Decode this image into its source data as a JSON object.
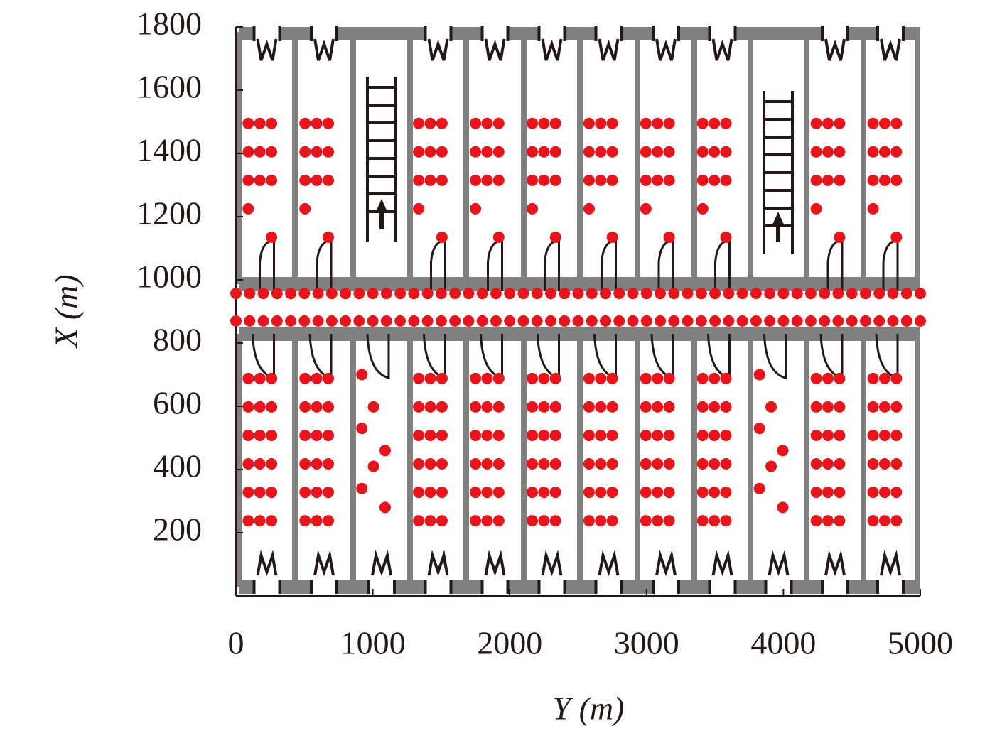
{
  "chart_data": {
    "type": "scatter",
    "xlabel": "Y (m)",
    "ylabel": "X (m)",
    "xlim": [
      0,
      5000
    ],
    "xticks": [
      0,
      1000,
      2000,
      3000,
      4000,
      5000
    ],
    "ylim": [
      0,
      1800
    ],
    "yticks": [
      200,
      400,
      600,
      800,
      1000,
      1200,
      1400,
      1600,
      1800
    ],
    "color": "#e8141c",
    "x": [
      90,
      175,
      260,
      90,
      175,
      260,
      90,
      175,
      260,
      90,
      260,
      505,
      590,
      675,
      505,
      590,
      675,
      505,
      590,
      675,
      505,
      675,
      1335,
      1420,
      1505,
      1335,
      1420,
      1505,
      1335,
      1420,
      1505,
      1335,
      1505,
      1750,
      1835,
      1920,
      1750,
      1835,
      1920,
      1750,
      1835,
      1920,
      1750,
      1920,
      2165,
      2250,
      2335,
      2165,
      2250,
      2335,
      2165,
      2250,
      2335,
      2165,
      2335,
      2580,
      2665,
      2750,
      2580,
      2665,
      2750,
      2580,
      2665,
      2750,
      2580,
      2750,
      2995,
      3080,
      3165,
      2995,
      3080,
      3165,
      2995,
      3080,
      3165,
      2995,
      3165,
      3410,
      3495,
      3580,
      3410,
      3495,
      3580,
      3410,
      3495,
      3580,
      3410,
      3580,
      4240,
      4325,
      4410,
      4240,
      4325,
      4410,
      4240,
      4325,
      4410,
      4240,
      4410,
      4655,
      4740,
      4825,
      4655,
      4740,
      4825,
      4655,
      4740,
      4825,
      4655,
      4825,
      90,
      175,
      260,
      90,
      175,
      260,
      90,
      175,
      260,
      90,
      175,
      260,
      90,
      175,
      260,
      90,
      175,
      260,
      505,
      590,
      675,
      505,
      590,
      675,
      505,
      590,
      675,
      505,
      590,
      675,
      505,
      590,
      675,
      505,
      590,
      675,
      1335,
      1420,
      1505,
      1335,
      1420,
      1505,
      1335,
      1420,
      1505,
      1335,
      1420,
      1505,
      1335,
      1420,
      1505,
      1335,
      1420,
      1505,
      1750,
      1835,
      1920,
      1750,
      1835,
      1920,
      1750,
      1835,
      1920,
      1750,
      1835,
      1920,
      1750,
      1835,
      1920,
      1750,
      1835,
      1920,
      2165,
      2250,
      2335,
      2165,
      2250,
      2335,
      2165,
      2250,
      2335,
      2165,
      2250,
      2335,
      2165,
      2250,
      2335,
      2165,
      2250,
      2335,
      2580,
      2665,
      2750,
      2580,
      2665,
      2750,
      2580,
      2665,
      2750,
      2580,
      2665,
      2750,
      2580,
      2665,
      2750,
      2580,
      2665,
      2750,
      2995,
      3080,
      3165,
      2995,
      3080,
      3165,
      2995,
      3080,
      3165,
      2995,
      3080,
      3165,
      2995,
      3080,
      3165,
      2995,
      3080,
      3165,
      3410,
      3495,
      3580,
      3410,
      3495,
      3580,
      3410,
      3495,
      3580,
      3410,
      3495,
      3580,
      3410,
      3495,
      3580,
      3410,
      3495,
      3580,
      4240,
      4325,
      4410,
      4240,
      4325,
      4410,
      4240,
      4325,
      4410,
      4240,
      4325,
      4410,
      4240,
      4325,
      4410,
      4240,
      4325,
      4410,
      4655,
      4740,
      4825,
      4655,
      4740,
      4825,
      4655,
      4740,
      4825,
      4655,
      4740,
      4825,
      4655,
      4740,
      4825,
      4655,
      4740,
      4825,
      920,
      1005,
      920,
      1090,
      1005,
      920,
      1090,
      3825,
      3910,
      3825,
      3995,
      3910,
      3825,
      3995,
      0,
      100,
      200,
      300,
      400,
      500,
      600,
      700,
      800,
      900,
      1000,
      1100,
      1200,
      1300,
      1400,
      1500,
      1600,
      1700,
      1800,
      1900,
      2000,
      2100,
      2200,
      2300,
      2400,
      2500,
      2600,
      2700,
      2800,
      2900,
      3000,
      3100,
      3200,
      3300,
      3400,
      3500,
      3600,
      3700,
      3800,
      3900,
      4000,
      4100,
      4200,
      4300,
      4400,
      4500,
      4600,
      4700,
      4800,
      4900,
      5000,
      0,
      100,
      200,
      300,
      400,
      500,
      600,
      700,
      800,
      900,
      1000,
      1100,
      1200,
      1300,
      1400,
      1500,
      1600,
      1700,
      1800,
      1900,
      2000,
      2100,
      2200,
      2300,
      2400,
      2500,
      2600,
      2700,
      2800,
      2900,
      3000,
      3100,
      3200,
      3300,
      3400,
      3500,
      3600,
      3700,
      3800,
      3900,
      4000,
      4100,
      4200,
      4300,
      4400,
      4500,
      4600,
      4700,
      4800,
      4900,
      5000
    ],
    "values": [
      1495,
      1495,
      1495,
      1405,
      1405,
      1405,
      1315,
      1315,
      1315,
      1225,
      1135,
      1495,
      1495,
      1495,
      1405,
      1405,
      1405,
      1315,
      1315,
      1315,
      1225,
      1135,
      1495,
      1495,
      1495,
      1405,
      1405,
      1405,
      1315,
      1315,
      1315,
      1225,
      1135,
      1495,
      1495,
      1495,
      1405,
      1405,
      1405,
      1315,
      1315,
      1315,
      1225,
      1135,
      1495,
      1495,
      1495,
      1405,
      1405,
      1405,
      1315,
      1315,
      1315,
      1225,
      1135,
      1495,
      1495,
      1495,
      1405,
      1405,
      1405,
      1315,
      1315,
      1315,
      1225,
      1135,
      1495,
      1495,
      1495,
      1405,
      1405,
      1405,
      1315,
      1315,
      1315,
      1225,
      1135,
      1495,
      1495,
      1495,
      1405,
      1405,
      1405,
      1315,
      1315,
      1315,
      1225,
      1135,
      1495,
      1495,
      1495,
      1405,
      1405,
      1405,
      1315,
      1315,
      1315,
      1225,
      1135,
      1495,
      1495,
      1495,
      1405,
      1405,
      1405,
      1315,
      1315,
      1315,
      1225,
      1135,
      688,
      688,
      688,
      598,
      598,
      598,
      508,
      508,
      508,
      418,
      418,
      418,
      328,
      328,
      328,
      238,
      238,
      238,
      688,
      688,
      688,
      598,
      598,
      598,
      508,
      508,
      508,
      418,
      418,
      418,
      328,
      328,
      328,
      238,
      238,
      238,
      688,
      688,
      688,
      598,
      598,
      598,
      508,
      508,
      508,
      418,
      418,
      418,
      328,
      328,
      328,
      238,
      238,
      238,
      688,
      688,
      688,
      598,
      598,
      598,
      508,
      508,
      508,
      418,
      418,
      418,
      328,
      328,
      328,
      238,
      238,
      238,
      688,
      688,
      688,
      598,
      598,
      598,
      508,
      508,
      508,
      418,
      418,
      418,
      328,
      328,
      328,
      238,
      238,
      238,
      688,
      688,
      688,
      598,
      598,
      598,
      508,
      508,
      508,
      418,
      418,
      418,
      328,
      328,
      328,
      238,
      238,
      238,
      688,
      688,
      688,
      598,
      598,
      598,
      508,
      508,
      508,
      418,
      418,
      418,
      328,
      328,
      328,
      238,
      238,
      238,
      688,
      688,
      688,
      598,
      598,
      598,
      508,
      508,
      508,
      418,
      418,
      418,
      328,
      328,
      328,
      238,
      238,
      238,
      688,
      688,
      688,
      598,
      598,
      598,
      508,
      508,
      508,
      418,
      418,
      418,
      328,
      328,
      328,
      238,
      238,
      238,
      688,
      688,
      688,
      598,
      598,
      598,
      508,
      508,
      508,
      418,
      418,
      418,
      328,
      328,
      328,
      238,
      238,
      238,
      700,
      598,
      530,
      460,
      410,
      340,
      280,
      700,
      598,
      530,
      460,
      410,
      340,
      280,
      957,
      957,
      957,
      957,
      957,
      957,
      957,
      957,
      957,
      957,
      957,
      957,
      957,
      957,
      957,
      957,
      957,
      957,
      957,
      957,
      957,
      957,
      957,
      957,
      957,
      957,
      957,
      957,
      957,
      957,
      957,
      957,
      957,
      957,
      957,
      957,
      957,
      957,
      957,
      957,
      957,
      957,
      957,
      957,
      957,
      957,
      957,
      957,
      957,
      957,
      957,
      870,
      870,
      870,
      870,
      870,
      870,
      870,
      870,
      870,
      870,
      870,
      870,
      870,
      870,
      870,
      870,
      870,
      870,
      870,
      870,
      870,
      870,
      870,
      870,
      870,
      870,
      870,
      870,
      870,
      870,
      870,
      870,
      870,
      870,
      870,
      870,
      870,
      870,
      870,
      870,
      870,
      870,
      870,
      870,
      870,
      870,
      870,
      870,
      870,
      870,
      870
    ]
  }
}
